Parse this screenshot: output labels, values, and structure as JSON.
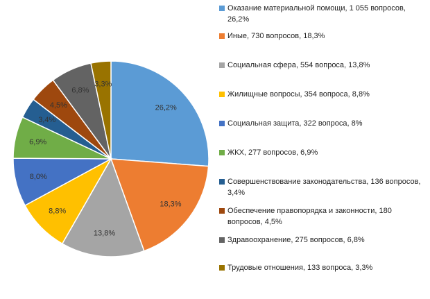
{
  "chart_data": {
    "type": "pie",
    "title": "",
    "legend_position": "right",
    "slices": [
      {
        "label": "26,2%",
        "legend": "Оказание материальной помощи, 1 055 вопросов, 26,2%",
        "value": 26.2,
        "color": "#5B9BD5"
      },
      {
        "label": "18,3%",
        "legend": "Иные, 730 вопросов, 18,3%",
        "value": 18.3,
        "color": "#ED7D31"
      },
      {
        "label": "13,8%",
        "legend": "Социальная сфера, 554 вопроса, 13,8%",
        "value": 13.8,
        "color": "#A5A5A5"
      },
      {
        "label": "8,8%",
        "legend": "Жилищные вопросы, 354 вопроса, 8,8%",
        "value": 8.8,
        "color": "#FFC000"
      },
      {
        "label": "8,0%",
        "legend": "Социальная защита, 322 вопроса, 8%",
        "value": 8.0,
        "color": "#4472C4"
      },
      {
        "label": "6,9%",
        "legend": "ЖКХ, 277 вопросов, 6,9%",
        "value": 6.9,
        "color": "#70AD47"
      },
      {
        "label": "3,4%",
        "legend": "Совершенствование законодательства, 136 вопросов, 3,4%",
        "value": 3.4,
        "color": "#255E91"
      },
      {
        "label": "4,5%",
        "legend": "Обеспечение правопорядка и законности, 180 вопросов, 4,5%",
        "value": 4.5,
        "color": "#9E480E"
      },
      {
        "label": "6,8%",
        "legend": "Здравоохранение, 275 вопросов, 6,8%",
        "value": 6.8,
        "color": "#636363"
      },
      {
        "label": "3,3%",
        "legend": "Трудовые отношения, 133 вопроса, 3,3%",
        "value": 3.3,
        "color": "#997300"
      }
    ]
  }
}
